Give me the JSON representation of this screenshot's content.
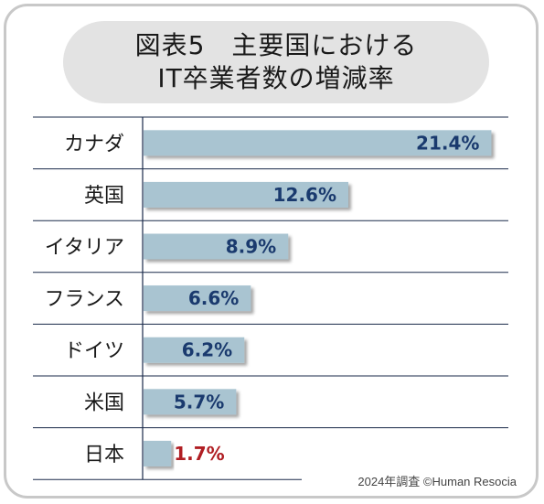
{
  "title": {
    "line1": "図表5　主要国における",
    "line2": "IT卒業者数の増減率"
  },
  "source": "2024年調査 ©Human Resocia",
  "colors": {
    "bar": "#a9c4d1",
    "value_text": "#1a3a6e",
    "highlight_text": "#b01e23",
    "grid": "#1a2a4a"
  },
  "chart_data": {
    "type": "bar",
    "orientation": "horizontal",
    "categories": [
      "カナダ",
      "英国",
      "イタリア",
      "フランス",
      "ドイツ",
      "米国",
      "日本"
    ],
    "values": [
      21.4,
      12.6,
      8.9,
      6.6,
      6.2,
      5.7,
      1.7
    ],
    "value_labels": [
      "21.4%",
      "12.6%",
      "8.9%",
      "6.6%",
      "6.2%",
      "5.7%",
      "1.7%"
    ],
    "highlight_category": "日本",
    "xlim": [
      0,
      22.5
    ],
    "title": "図表5　主要国における IT卒業者数の増減率",
    "xlabel": "",
    "ylabel": ""
  }
}
